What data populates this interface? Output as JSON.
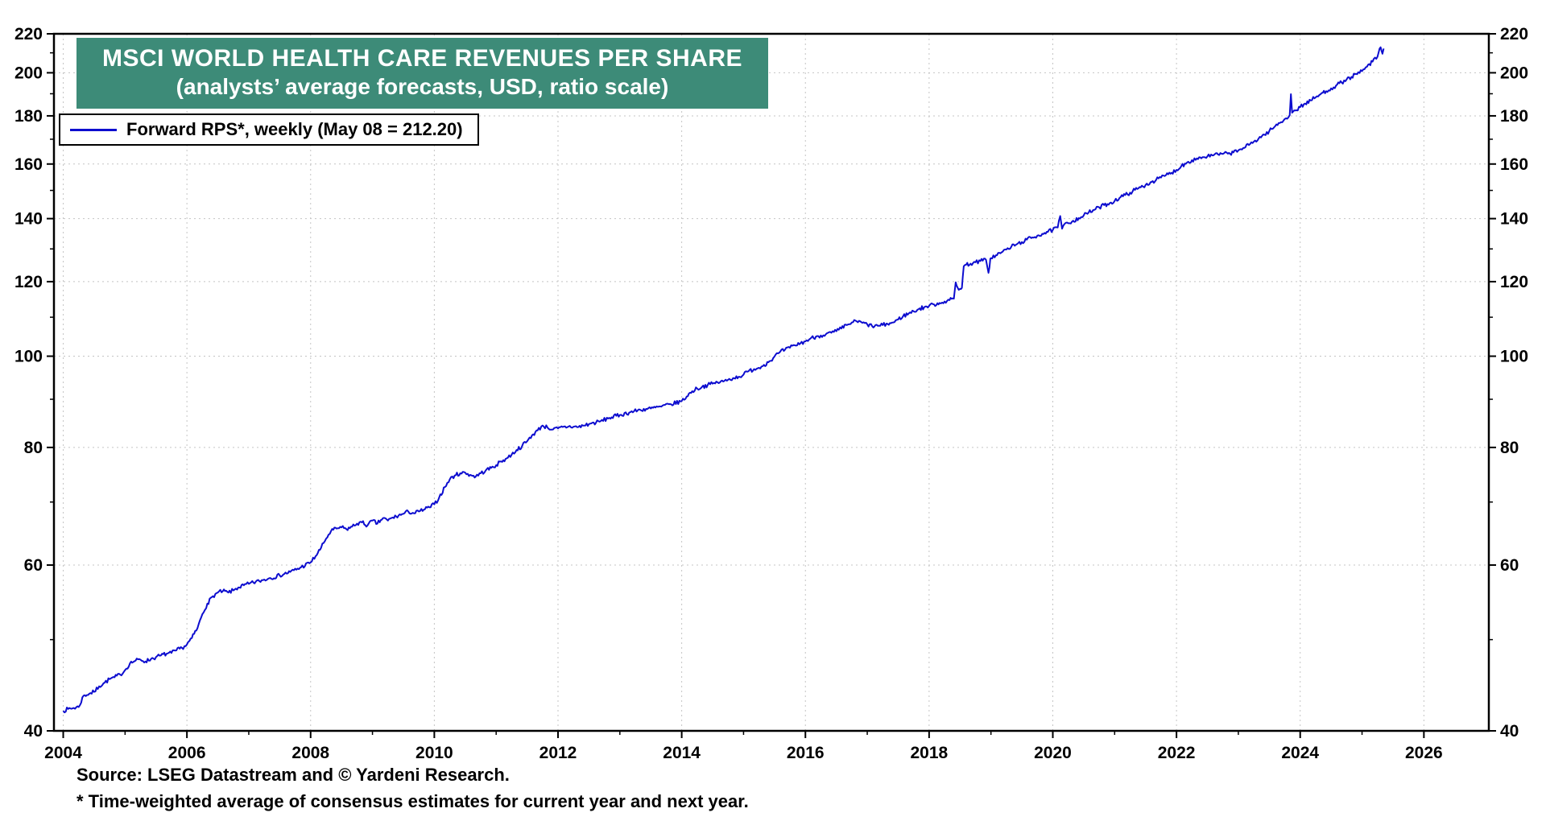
{
  "title": {
    "line1": "MSCI WORLD HEALTH CARE REVENUES PER SHARE",
    "line2": "(analysts’ average forecasts, USD, ratio scale)"
  },
  "legend": {
    "label": "Forward RPS*, weekly (May 08 = 212.20)"
  },
  "footer": {
    "source": "Source: LSEG Datastream and © Yardeni Research.",
    "note": "* Time-weighted average of consensus estimates for current year and next year."
  },
  "colors": {
    "line": "#0d0dcf",
    "title_bg": "#3d8b78",
    "grid": "#c4c4c4",
    "frame": "#000000",
    "text": "#000000"
  },
  "chart_data": {
    "type": "line",
    "title": "MSCI WORLD HEALTH CARE REVENUES PER SHARE (analysts’ average forecasts, USD, ratio scale)",
    "xlabel": "",
    "ylabel": "",
    "y_scale": "log",
    "grid": "dotted",
    "legend_position": "top-left",
    "x_range": [
      2003.85,
      2027.05
    ],
    "y_range": [
      40,
      220
    ],
    "x_ticks_labeled": [
      2004,
      2006,
      2008,
      2010,
      2012,
      2014,
      2016,
      2018,
      2020,
      2022,
      2024,
      2026
    ],
    "x_ticks_minor": [
      2005,
      2007,
      2009,
      2011,
      2013,
      2015,
      2017,
      2019,
      2021,
      2023,
      2025
    ],
    "y_ticks_labeled": [
      40,
      60,
      80,
      100,
      120,
      140,
      160,
      180,
      200,
      220
    ],
    "y_ticks_minor": [
      50,
      70,
      90,
      110,
      130,
      150,
      170,
      190,
      210
    ],
    "last_point": {
      "date": "May 08",
      "value": 212.2
    },
    "series": [
      {
        "name": "Forward RPS*, weekly",
        "color": "#0d0dcf",
        "points": [
          [
            2004.0,
            42.0
          ],
          [
            2004.08,
            42.2
          ],
          [
            2004.17,
            42.3
          ],
          [
            2004.25,
            42.4
          ],
          [
            2004.33,
            43.6
          ],
          [
            2004.42,
            43.8
          ],
          [
            2004.5,
            44.0
          ],
          [
            2004.58,
            44.6
          ],
          [
            2004.67,
            45.0
          ],
          [
            2004.75,
            45.4
          ],
          [
            2004.83,
            45.6
          ],
          [
            2004.92,
            45.9
          ],
          [
            2005.0,
            46.4
          ],
          [
            2005.08,
            47.2
          ],
          [
            2005.17,
            47.5
          ],
          [
            2005.25,
            47.6
          ],
          [
            2005.33,
            47.4
          ],
          [
            2005.42,
            47.7
          ],
          [
            2005.5,
            47.9
          ],
          [
            2005.58,
            48.1
          ],
          [
            2005.67,
            48.3
          ],
          [
            2005.75,
            48.4
          ],
          [
            2005.83,
            48.7
          ],
          [
            2005.92,
            49.0
          ],
          [
            2006.0,
            49.4
          ],
          [
            2006.08,
            50.2
          ],
          [
            2006.17,
            51.4
          ],
          [
            2006.25,
            53.2
          ],
          [
            2006.33,
            54.6
          ],
          [
            2006.42,
            55.6
          ],
          [
            2006.5,
            56.1
          ],
          [
            2006.58,
            56.3
          ],
          [
            2006.67,
            56.1
          ],
          [
            2006.75,
            56.4
          ],
          [
            2006.83,
            56.8
          ],
          [
            2006.92,
            57.1
          ],
          [
            2007.0,
            57.3
          ],
          [
            2007.17,
            57.7
          ],
          [
            2007.33,
            58.1
          ],
          [
            2007.5,
            58.5
          ],
          [
            2007.67,
            59.0
          ],
          [
            2007.83,
            59.6
          ],
          [
            2008.0,
            60.4
          ],
          [
            2008.08,
            61.3
          ],
          [
            2008.17,
            62.6
          ],
          [
            2008.25,
            64.0
          ],
          [
            2008.33,
            65.2
          ],
          [
            2008.42,
            65.6
          ],
          [
            2008.5,
            65.8
          ],
          [
            2008.58,
            65.5
          ],
          [
            2008.67,
            65.9
          ],
          [
            2008.75,
            66.4
          ],
          [
            2008.83,
            66.6
          ],
          [
            2008.92,
            66.1
          ],
          [
            2009.0,
            66.9
          ],
          [
            2009.08,
            66.4
          ],
          [
            2009.17,
            67.3
          ],
          [
            2009.25,
            66.9
          ],
          [
            2009.33,
            67.4
          ],
          [
            2009.42,
            67.7
          ],
          [
            2009.5,
            68.0
          ],
          [
            2009.58,
            68.4
          ],
          [
            2009.67,
            68.1
          ],
          [
            2009.75,
            68.4
          ],
          [
            2009.83,
            68.7
          ],
          [
            2009.92,
            69.1
          ],
          [
            2010.0,
            69.6
          ],
          [
            2010.08,
            70.8
          ],
          [
            2010.17,
            72.6
          ],
          [
            2010.25,
            74.0
          ],
          [
            2010.33,
            74.7
          ],
          [
            2010.42,
            75.1
          ],
          [
            2010.5,
            75.2
          ],
          [
            2010.58,
            74.8
          ],
          [
            2010.67,
            74.5
          ],
          [
            2010.75,
            75.1
          ],
          [
            2010.83,
            75.6
          ],
          [
            2010.92,
            76.1
          ],
          [
            2011.0,
            76.6
          ],
          [
            2011.08,
            77.3
          ],
          [
            2011.17,
            77.9
          ],
          [
            2011.25,
            78.6
          ],
          [
            2011.33,
            79.5
          ],
          [
            2011.42,
            80.3
          ],
          [
            2011.5,
            81.2
          ],
          [
            2011.58,
            82.4
          ],
          [
            2011.67,
            83.4
          ],
          [
            2011.75,
            84.4
          ],
          [
            2011.83,
            84.0
          ],
          [
            2011.92,
            83.6
          ],
          [
            2012.0,
            83.8
          ],
          [
            2012.17,
            84.2
          ],
          [
            2012.33,
            84.1
          ],
          [
            2012.5,
            84.7
          ],
          [
            2012.67,
            85.2
          ],
          [
            2012.83,
            86.0
          ],
          [
            2013.0,
            86.6
          ],
          [
            2013.17,
            87.2
          ],
          [
            2013.33,
            87.7
          ],
          [
            2013.5,
            88.0
          ],
          [
            2013.67,
            88.4
          ],
          [
            2013.83,
            88.9
          ],
          [
            2014.0,
            89.6
          ],
          [
            2014.08,
            90.6
          ],
          [
            2014.17,
            91.8
          ],
          [
            2014.25,
            92.4
          ],
          [
            2014.33,
            92.8
          ],
          [
            2014.42,
            93.2
          ],
          [
            2014.5,
            93.5
          ],
          [
            2014.58,
            93.8
          ],
          [
            2014.67,
            94.0
          ],
          [
            2014.75,
            94.4
          ],
          [
            2014.83,
            94.8
          ],
          [
            2014.92,
            95.1
          ],
          [
            2015.0,
            95.6
          ],
          [
            2015.08,
            96.4
          ],
          [
            2015.17,
            96.9
          ],
          [
            2015.25,
            97.2
          ],
          [
            2015.33,
            97.9
          ],
          [
            2015.42,
            98.8
          ],
          [
            2015.5,
            99.9
          ],
          [
            2015.58,
            100.9
          ],
          [
            2015.67,
            101.6
          ],
          [
            2015.75,
            102.1
          ],
          [
            2015.83,
            102.7
          ],
          [
            2015.92,
            103.2
          ],
          [
            2016.0,
            103.7
          ],
          [
            2016.08,
            104.4
          ],
          [
            2016.17,
            104.9
          ],
          [
            2016.25,
            105.2
          ],
          [
            2016.33,
            105.5
          ],
          [
            2016.42,
            105.9
          ],
          [
            2016.5,
            106.3
          ],
          [
            2016.58,
            107.0
          ],
          [
            2016.67,
            107.9
          ],
          [
            2016.75,
            108.6
          ],
          [
            2016.83,
            108.9
          ],
          [
            2016.92,
            108.5
          ],
          [
            2017.0,
            108.1
          ],
          [
            2017.08,
            107.6
          ],
          [
            2017.17,
            107.7
          ],
          [
            2017.25,
            107.9
          ],
          [
            2017.33,
            108.2
          ],
          [
            2017.42,
            108.6
          ],
          [
            2017.5,
            109.4
          ],
          [
            2017.58,
            110.3
          ],
          [
            2017.67,
            111.0
          ],
          [
            2017.75,
            111.6
          ],
          [
            2017.83,
            112.2
          ],
          [
            2017.92,
            112.7
          ],
          [
            2018.0,
            113.1
          ],
          [
            2018.08,
            113.5
          ],
          [
            2018.17,
            113.9
          ],
          [
            2018.25,
            114.3
          ],
          [
            2018.33,
            114.7
          ],
          [
            2018.4,
            115.1
          ],
          [
            2018.43,
            119.8
          ],
          [
            2018.46,
            118.3
          ],
          [
            2018.5,
            117.9
          ],
          [
            2018.53,
            118.2
          ],
          [
            2018.56,
            124.6
          ],
          [
            2018.6,
            125.1
          ],
          [
            2018.67,
            125.4
          ],
          [
            2018.75,
            125.8
          ],
          [
            2018.83,
            126.2
          ],
          [
            2018.92,
            126.6
          ],
          [
            2018.96,
            122.6
          ],
          [
            2018.99,
            126.9
          ],
          [
            2019.0,
            127.1
          ],
          [
            2019.08,
            128.0
          ],
          [
            2019.17,
            128.9
          ],
          [
            2019.25,
            129.8
          ],
          [
            2019.33,
            130.7
          ],
          [
            2019.42,
            131.5
          ],
          [
            2019.5,
            132.2
          ],
          [
            2019.58,
            133.0
          ],
          [
            2019.67,
            133.7
          ],
          [
            2019.75,
            134.3
          ],
          [
            2019.83,
            134.9
          ],
          [
            2019.92,
            135.5
          ],
          [
            2020.0,
            136.2
          ],
          [
            2020.08,
            137.0
          ],
          [
            2020.12,
            140.9
          ],
          [
            2020.15,
            136.6
          ],
          [
            2020.17,
            137.6
          ],
          [
            2020.25,
            138.4
          ],
          [
            2020.33,
            139.3
          ],
          [
            2020.42,
            140.2
          ],
          [
            2020.5,
            141.1
          ],
          [
            2020.58,
            142.1
          ],
          [
            2020.67,
            143.0
          ],
          [
            2020.75,
            143.9
          ],
          [
            2020.83,
            144.7
          ],
          [
            2020.92,
            145.4
          ],
          [
            2021.0,
            146.2
          ],
          [
            2021.08,
            147.3
          ],
          [
            2021.17,
            148.3
          ],
          [
            2021.25,
            149.2
          ],
          [
            2021.33,
            150.2
          ],
          [
            2021.42,
            151.1
          ],
          [
            2021.5,
            152.0
          ],
          [
            2021.58,
            153.0
          ],
          [
            2021.67,
            153.9
          ],
          [
            2021.75,
            154.8
          ],
          [
            2021.83,
            155.7
          ],
          [
            2021.92,
            156.6
          ],
          [
            2022.0,
            157.7
          ],
          [
            2022.08,
            159.3
          ],
          [
            2022.17,
            160.6
          ],
          [
            2022.25,
            161.5
          ],
          [
            2022.33,
            162.2
          ],
          [
            2022.42,
            162.7
          ],
          [
            2022.5,
            163.0
          ],
          [
            2022.58,
            163.4
          ],
          [
            2022.67,
            163.8
          ],
          [
            2022.75,
            164.0
          ],
          [
            2022.83,
            164.1
          ],
          [
            2022.92,
            164.6
          ],
          [
            2023.0,
            165.4
          ],
          [
            2023.08,
            166.4
          ],
          [
            2023.17,
            167.6
          ],
          [
            2023.25,
            169.0
          ],
          [
            2023.33,
            170.4
          ],
          [
            2023.42,
            171.9
          ],
          [
            2023.5,
            173.4
          ],
          [
            2023.58,
            175.1
          ],
          [
            2023.67,
            176.9
          ],
          [
            2023.75,
            178.6
          ],
          [
            2023.83,
            180.3
          ],
          [
            2023.85,
            189.8
          ],
          [
            2023.87,
            181.4
          ],
          [
            2023.92,
            182.4
          ],
          [
            2024.0,
            183.9
          ],
          [
            2024.08,
            185.5
          ],
          [
            2024.17,
            186.9
          ],
          [
            2024.25,
            188.3
          ],
          [
            2024.33,
            189.8
          ],
          [
            2024.42,
            191.2
          ],
          [
            2024.5,
            192.5
          ],
          [
            2024.58,
            193.9
          ],
          [
            2024.67,
            195.3
          ],
          [
            2024.75,
            196.7
          ],
          [
            2024.83,
            198.0
          ],
          [
            2024.92,
            199.3
          ],
          [
            2025.0,
            200.8
          ],
          [
            2025.08,
            203.0
          ],
          [
            2025.17,
            205.5
          ],
          [
            2025.25,
            208.0
          ],
          [
            2025.3,
            212.9
          ],
          [
            2025.33,
            209.5
          ],
          [
            2025.35,
            212.2
          ]
        ]
      }
    ]
  }
}
